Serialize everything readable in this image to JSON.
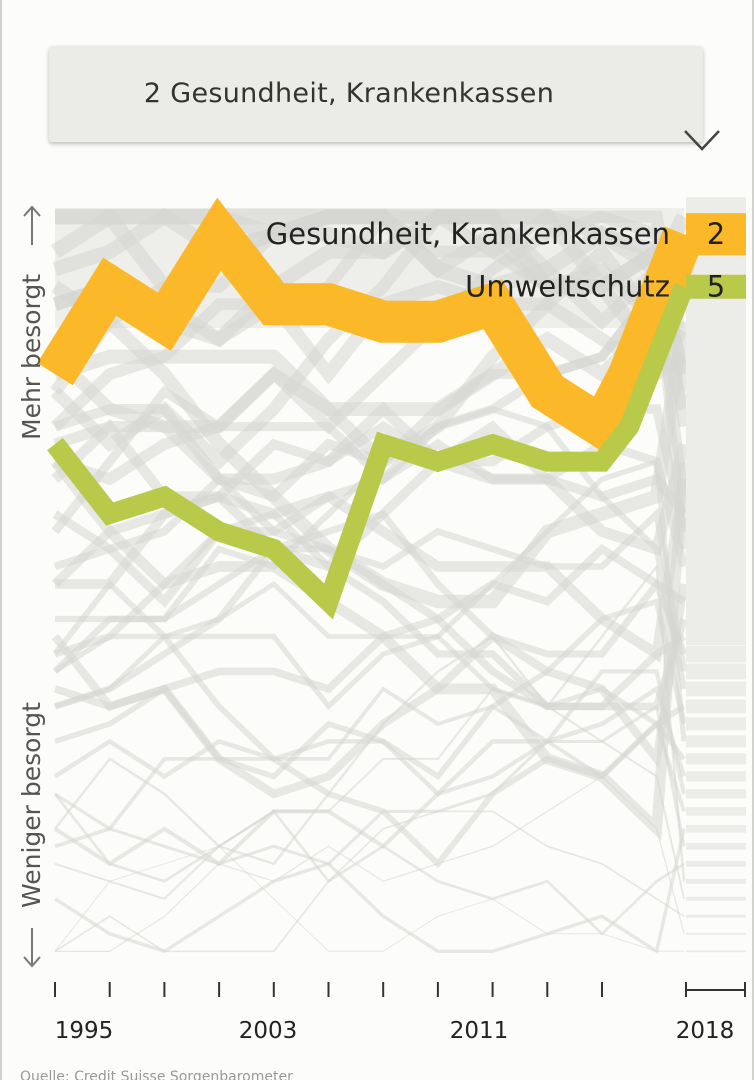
{
  "dropdown": {
    "selected": "2 Gesundheit, Krankenkassen",
    "icon": "chevron-down-icon"
  },
  "axis": {
    "top_label": "Mehr besorgt",
    "bottom_label": "Weniger besorgt"
  },
  "colors": {
    "highlight_primary": "#fbb829",
    "highlight_secondary": "#b9c94a",
    "background_lines": "#d9d9d4"
  },
  "chart_data": {
    "type": "line",
    "y_axis": "rank (1 = most concern at top, 43 at bottom)",
    "ylim": [
      43,
      1
    ],
    "x": [
      1995,
      1996,
      1997,
      1998,
      1999,
      2000,
      2001,
      2002,
      2003,
      2004,
      2005,
      2006,
      2007,
      2008,
      2009,
      2010,
      2011,
      2012,
      2013,
      2014,
      2015,
      2016,
      2017,
      2018
    ],
    "x_tick_labels": [
      "1995",
      "2003",
      "2011",
      "2018"
    ],
    "series": [
      {
        "name": "Gesundheit, Krankenkassen",
        "final_rank": "2",
        "x": [
          1995,
          1997,
          1999,
          2001,
          2003,
          2005,
          2007,
          2009,
          2011,
          2013,
          2015,
          2016,
          2018
        ],
        "values": [
          10,
          5,
          7,
          2,
          6,
          6,
          7,
          7,
          6,
          11,
          13,
          10,
          2
        ]
      },
      {
        "name": "Umweltschutz",
        "final_rank": "5",
        "x": [
          1995,
          1997,
          1999,
          2001,
          2003,
          2005,
          2007,
          2009,
          2011,
          2013,
          2015,
          2016,
          2018
        ],
        "values": [
          14,
          18,
          17,
          19,
          20,
          23,
          14,
          15,
          14,
          15,
          15,
          13,
          5
        ]
      }
    ]
  },
  "footer": {
    "note": "Quelle: Credit Suisse Sorgenbarometer"
  }
}
